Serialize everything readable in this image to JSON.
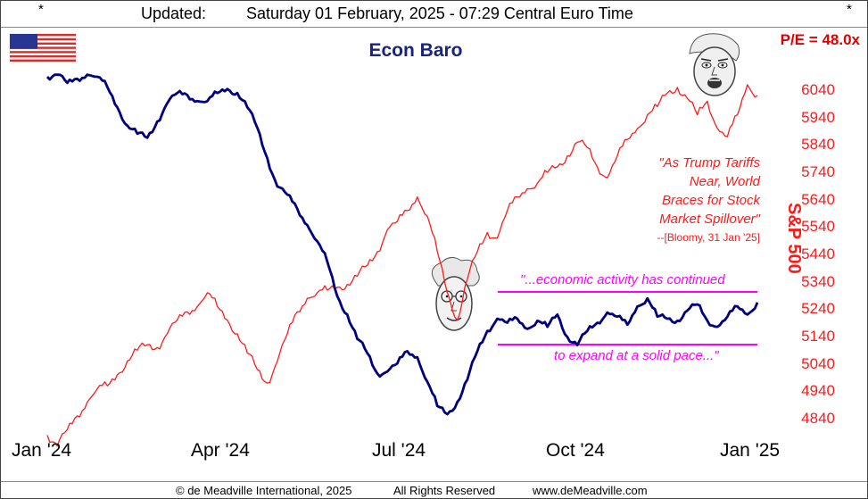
{
  "header": {
    "star_left": "*",
    "star_right": "*",
    "updated_label": "Updated:",
    "updated_value": "Saturday 01 February, 2025 - 07:29 Central Euro Time"
  },
  "flag_icon": "us-flag-icon",
  "chart_data": {
    "type": "line",
    "title": "Econ Baro",
    "pe_label": "P/E = 48.0x",
    "y_right_label": "S&P 500",
    "x_tick_labels": [
      "Jan '24",
      "Apr '24",
      "Jul '24",
      "Oct '24",
      "Jan '25"
    ],
    "y_right_ticks": [
      6040,
      5940,
      5840,
      5740,
      5640,
      5540,
      5440,
      5340,
      5240,
      5140,
      5040,
      4940,
      4840
    ],
    "y_right_range": [
      4790,
      6140
    ],
    "series": [
      {
        "name": "S&P 500",
        "color": "#ff1a1a",
        "values": [
          4780,
          4740,
          4800,
          4850,
          4900,
          4950,
          4960,
          5000,
          5050,
          5090,
          5110,
          5100,
          5150,
          5200,
          5230,
          5250,
          5300,
          5250,
          5200,
          5150,
          5080,
          5020,
          4970,
          5050,
          5150,
          5230,
          5280,
          5300,
          5310,
          5320,
          5330,
          5360,
          5400,
          5450,
          5530,
          5560,
          5600,
          5650,
          5580,
          5450,
          5300,
          5200,
          5350,
          5450,
          5520,
          5500,
          5600,
          5650,
          5680,
          5700,
          5740,
          5760,
          5800,
          5850,
          5830,
          5760,
          5720,
          5800,
          5860,
          5900,
          5950,
          5980,
          6030,
          6050,
          6010,
          5950,
          6000,
          5900,
          5870,
          5950,
          6060,
          6020
        ]
      },
      {
        "name": "Econ Baro",
        "color": "#000080",
        "values": [
          100,
          101,
          97,
          99,
          101,
          100,
          95,
          85,
          76,
          72,
          70,
          78,
          87,
          92,
          91,
          88,
          88,
          92,
          94,
          92,
          85,
          75,
          60,
          46,
          42,
          35,
          27,
          19,
          9,
          -8,
          -17,
          -29,
          -36,
          -46,
          -45,
          -41,
          -35,
          -38,
          -50,
          -62,
          -66,
          -60,
          -49,
          -35,
          -25,
          -19,
          -21,
          -19,
          -24,
          -20,
          -23,
          -17,
          -28,
          -32,
          -25,
          -21,
          -16,
          -18,
          -22,
          -13,
          -9,
          -18,
          -19,
          -20,
          -15,
          -12,
          -20,
          -23,
          -18,
          -13,
          -17,
          -11
        ]
      }
    ],
    "annotations": {
      "quote_red_lines": [
        "\"As Trump Tariffs",
        "Near, World",
        "Braces for Stock",
        "Market Spillover\""
      ],
      "quote_red_source": "--[Bloomy, 31 Jan '25]",
      "quote_mag_top": "\"...economic activity has continued",
      "quote_mag_bottom": "to expand at a solid pace...\"",
      "colors": {
        "red": "#ff1a1a",
        "magenta": "#ff00ff"
      }
    }
  },
  "footer": {
    "copyright": "© de Meadville International, 2025",
    "rights": "All Rights Reserved",
    "website": "www.deMeadville.com"
  }
}
